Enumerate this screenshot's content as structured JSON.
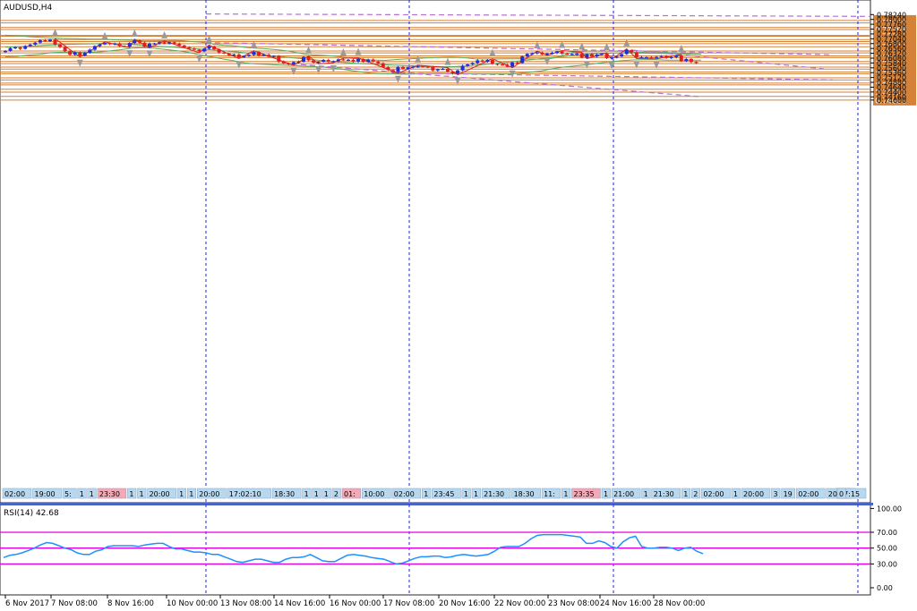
{
  "chart_data": [
    {
      "type": "candlestick",
      "title": "AUDUSD,H4",
      "price_scale_labels": [
        "0.78240",
        "0.78000",
        "0.77760",
        "0.77520",
        "0.77280",
        "0.77040",
        "0.76800",
        "0.76560",
        "0.76320",
        "0.76080",
        "0.75840",
        "0.75600",
        "0.75360",
        "0.75120",
        "0.74880",
        "0.74640",
        "0.74400",
        "0.74160",
        "0.74000"
      ],
      "horizontal_levels": [
        "0.77947",
        "0.77828",
        "0.77598",
        "0.77498",
        "0.77205",
        "0.77169",
        "0.77000",
        "0.76900",
        "0.76793",
        "0.76644",
        "0.76436",
        "0.76341",
        "0.76189",
        "0.76106",
        "0.75913",
        "0.75806",
        "0.75635",
        "0.75537",
        "0.75398",
        "0.75308",
        "0.75105",
        "0.75000",
        "0.74843",
        "0.74753",
        "0.74536",
        "0.74391",
        "0.74183",
        "0.74000"
      ],
      "x_tick_labels": [
        "6 Nov 2017",
        "7 Nov 08:00",
        "8 Nov 16:00",
        "10 Nov 00:00",
        "13 Nov 08:00",
        "14 Nov 16:00",
        "16 Nov 00:00",
        "17 Nov 08:00",
        "20 Nov 16:00",
        "22 Nov 00:00",
        "23 Nov 08:00",
        "24 Nov 16:00",
        "28 Nov 00:00"
      ],
      "session_labels": [
        {
          "text": "02:00",
          "color": "#b8d8f0"
        },
        {
          "text": "19:00",
          "color": "#b8d8f0"
        },
        {
          "text": "5:",
          "color": "#b8d8f0"
        },
        {
          "text": "1",
          "color": "#b8d8f0"
        },
        {
          "text": "1",
          "color": "#b8d8f0"
        },
        {
          "text": "23:30",
          "color": "#f4a9b6"
        },
        {
          "text": "1",
          "color": "#b8d8f0"
        },
        {
          "text": "1",
          "color": "#b8d8f0"
        },
        {
          "text": "20:00",
          "color": "#b8d8f0"
        },
        {
          "text": "1",
          "color": "#b8d8f0"
        },
        {
          "text": "1",
          "color": "#b8d8f0"
        },
        {
          "text": "20:00",
          "color": "#b8d8f0"
        },
        {
          "text": "17:02:10",
          "color": "#b8d8f0"
        },
        {
          "text": "18:30",
          "color": "#b8d8f0"
        },
        {
          "text": "1",
          "color": "#b8d8f0"
        },
        {
          "text": "1",
          "color": "#b8d8f0"
        },
        {
          "text": "1",
          "color": "#b8d8f0"
        },
        {
          "text": "2",
          "color": "#b8d8f0"
        },
        {
          "text": "01:",
          "color": "#f4a9b6"
        },
        {
          "text": "10:00",
          "color": "#b8d8f0"
        },
        {
          "text": "02:00",
          "color": "#b8d8f0"
        },
        {
          "text": "1",
          "color": "#b8d8f0"
        },
        {
          "text": "23:45",
          "color": "#b8d8f0"
        },
        {
          "text": "1",
          "color": "#b8d8f0"
        },
        {
          "text": "1",
          "color": "#b8d8f0"
        },
        {
          "text": "21:30",
          "color": "#b8d8f0"
        },
        {
          "text": "18:30",
          "color": "#b8d8f0"
        },
        {
          "text": "11:",
          "color": "#b8d8f0"
        },
        {
          "text": "1",
          "color": "#b8d8f0"
        },
        {
          "text": "23:35",
          "color": "#f4a9b6"
        },
        {
          "text": "1",
          "color": "#b8d8f0"
        },
        {
          "text": "21:00",
          "color": "#b8d8f0"
        },
        {
          "text": "1",
          "color": "#b8d8f0"
        },
        {
          "text": "21:30",
          "color": "#b8d8f0"
        },
        {
          "text": "1",
          "color": "#b8d8f0"
        },
        {
          "text": "2",
          "color": "#b8d8f0"
        },
        {
          "text": "02:00",
          "color": "#b8d8f0"
        },
        {
          "text": "1",
          "color": "#b8d8f0"
        },
        {
          "text": "20:00",
          "color": "#b8d8f0"
        },
        {
          "text": "3",
          "color": "#b8d8f0"
        },
        {
          "text": "19",
          "color": "#b8d8f0"
        },
        {
          "text": "02:00",
          "color": "#b8d8f0"
        },
        {
          "text": "20:00",
          "color": "#b8d8f0"
        },
        {
          "text": "7:",
          "color": "#b8d8f0"
        },
        {
          "text": "17:15",
          "color": "#b8d8f0"
        },
        {
          "text": "0",
          "color": "#b8d8f0"
        }
      ],
      "series": [
        {
          "name": "AUDUSD",
          "role": "candles",
          "close": [
            0.7644,
            0.7658,
            0.7662,
            0.7654,
            0.7668,
            0.7675,
            0.7685,
            0.7697,
            0.7692,
            0.77,
            0.7675,
            0.7663,
            0.7642,
            0.7625,
            0.7637,
            0.762,
            0.7635,
            0.765,
            0.7668,
            0.7676,
            0.7683,
            0.7677,
            0.7681,
            0.7668,
            0.7665,
            0.7683,
            0.7696,
            0.7685,
            0.7664,
            0.768,
            0.7681,
            0.7687,
            0.768,
            0.7687,
            0.768,
            0.7671,
            0.7662,
            0.7655,
            0.765,
            0.7641,
            0.7655,
            0.7667,
            0.7652,
            0.7636,
            0.7631,
            0.7622,
            0.7626,
            0.7612,
            0.7618,
            0.7624,
            0.7639,
            0.7621,
            0.7625,
            0.7615,
            0.7619,
            0.7591,
            0.7582,
            0.7578,
            0.7588,
            0.759,
            0.7614,
            0.7597,
            0.7586,
            0.759,
            0.7599,
            0.7591,
            0.7593,
            0.7602,
            0.7598,
            0.76,
            0.7591,
            0.7604,
            0.7589,
            0.7601,
            0.7592,
            0.7583,
            0.7563,
            0.7549,
            0.754,
            0.7564,
            0.7555,
            0.7562,
            0.7566,
            0.7567,
            0.7566,
            0.7563,
            0.7547,
            0.7553,
            0.7555,
            0.7541,
            0.7532,
            0.7547,
            0.757,
            0.7577,
            0.7584,
            0.7597,
            0.759,
            0.7599,
            0.758,
            0.7577,
            0.7575,
            0.7566,
            0.7587,
            0.7584,
            0.7616,
            0.7629,
            0.7632,
            0.7637,
            0.7626,
            0.7631,
            0.7634,
            0.7641,
            0.763,
            0.7628,
            0.7629,
            0.7631,
            0.761,
            0.7628,
            0.7616,
            0.7625,
            0.763,
            0.7608,
            0.7613,
            0.7616,
            0.7628,
            0.7648,
            0.7637,
            0.7612,
            0.7613,
            0.7613,
            0.7611,
            0.7614,
            0.7619,
            0.7609,
            0.7613,
            0.7621,
            0.7593,
            0.7604,
            0.7589,
            0.7585
          ]
        },
        {
          "name": "Bollinger upper",
          "role": "envelope",
          "values": [
            0.7722,
            0.772,
            0.7718,
            0.7714,
            0.7712,
            0.771,
            0.7708,
            0.7706,
            0.7705,
            0.7704,
            0.7703,
            0.7702,
            0.7702,
            0.77,
            0.7698,
            0.7697,
            0.7696,
            0.7694,
            0.7693,
            0.7694,
            0.7695,
            0.7696,
            0.7694,
            0.769,
            0.7688,
            0.7683,
            0.7675,
            0.7672,
            0.767,
            0.7665,
            0.766,
            0.7657,
            0.7655,
            0.7652,
            0.7648,
            0.7643,
            0.7636,
            0.7628,
            0.7624,
            0.7622,
            0.762,
            0.7617,
            0.7612,
            0.7607,
            0.7603,
            0.7599,
            0.7598,
            0.7597,
            0.76,
            0.7603,
            0.7605,
            0.7607,
            0.7609,
            0.761,
            0.7612,
            0.7613,
            0.7612,
            0.7609,
            0.7605,
            0.7604,
            0.7604,
            0.7604,
            0.7605,
            0.7605,
            0.7605,
            0.7604,
            0.7603,
            0.7604,
            0.761,
            0.7625,
            0.7636,
            0.7641,
            0.7642,
            0.7642,
            0.7642,
            0.7642,
            0.7642,
            0.7638,
            0.7636,
            0.7638,
            0.764,
            0.7638,
            0.7636,
            0.7634,
            0.7631,
            0.7629,
            0.7628
          ]
        },
        {
          "name": "Bollinger middle",
          "role": "envelope",
          "values": [
            0.7662,
            0.7664,
            0.7667,
            0.7669,
            0.7672,
            0.7674,
            0.7676,
            0.7677,
            0.7678,
            0.7679,
            0.768,
            0.7679,
            0.7677,
            0.7675,
            0.7672,
            0.7668,
            0.7665,
            0.7662,
            0.7658,
            0.7655,
            0.7652,
            0.7649,
            0.7644,
            0.764,
            0.7635,
            0.7629,
            0.7623,
            0.7618,
            0.7614,
            0.7609,
            0.7605,
            0.76,
            0.7595,
            0.759,
            0.7587,
            0.7583,
            0.758,
            0.7578,
            0.7576,
            0.7573,
            0.7571,
            0.757,
            0.7568,
            0.7567,
            0.7566,
            0.7566,
            0.7568,
            0.7572,
            0.7576,
            0.758,
            0.7585,
            0.759,
            0.7596,
            0.7601,
            0.7606,
            0.7611,
            0.7616,
            0.7621,
            0.7626,
            0.7629,
            0.7632,
            0.7633,
            0.7634,
            0.7634,
            0.7633,
            0.7632,
            0.7631,
            0.763,
            0.7629,
            0.7628,
            0.7628
          ]
        },
        {
          "name": "Bollinger lower",
          "role": "envelope",
          "values": [
            0.7615,
            0.7617,
            0.7623,
            0.7627,
            0.7635,
            0.7637,
            0.7637,
            0.7636,
            0.7637,
            0.7643,
            0.7649,
            0.7657,
            0.766,
            0.7657,
            0.7651,
            0.7645,
            0.7637,
            0.7625,
            0.7615,
            0.7605,
            0.7595,
            0.7584,
            0.7579,
            0.7577,
            0.7574,
            0.7572,
            0.7569,
            0.7567,
            0.7563,
            0.7557,
            0.7549,
            0.7541,
            0.7534,
            0.753,
            0.753,
            0.7528,
            0.753,
            0.7532,
            0.7533,
            0.7532,
            0.7531,
            0.753,
            0.753,
            0.7529,
            0.7529,
            0.7533,
            0.7538,
            0.7545,
            0.7556,
            0.7564,
            0.757,
            0.7575,
            0.7583,
            0.759,
            0.7595,
            0.7599,
            0.76,
            0.76,
            0.7598,
            0.7598,
            0.7598,
            0.7598
          ]
        }
      ],
      "trendlines": [
        {
          "from": [
            "10 Nov 00:00",
            0.7827
          ],
          "to": [
            "28 Nov 00:00",
            0.7815
          ]
        },
        {
          "from": [
            "10 Nov 00:00",
            0.7685
          ],
          "to": [
            "28 Nov 00:00",
            0.7625
          ]
        },
        {
          "from": [
            "14 Nov 16:00",
            0.758
          ],
          "to": [
            "28 Nov 00:00",
            0.7418
          ]
        },
        {
          "from": [
            "17 Nov 08:00",
            0.7535
          ],
          "to": [
            "28 Nov 00:00",
            0.75
          ]
        },
        {
          "from": [
            "24 Nov 16:00",
            0.7648
          ],
          "to": [
            "28 Nov 00:00",
            0.7555
          ]
        }
      ],
      "colors": {
        "up": "#1f2fd6",
        "down": "#e0201f",
        "level": "#d4823a",
        "band": "#5aab66",
        "trend": "#b86fd6",
        "grid_v": "#2323d6"
      }
    },
    {
      "type": "line",
      "title": "RSI(14) 42.68",
      "yticks": [
        "100.00",
        "70.00",
        "50.00",
        "30.00",
        "0.00"
      ],
      "ylim": [
        0,
        100
      ],
      "levels": [
        70,
        50,
        30
      ],
      "series": [
        {
          "name": "RSI(14)",
          "values": [
            38,
            41,
            42,
            44,
            47,
            50,
            54,
            57,
            56,
            53,
            50,
            48,
            44,
            42,
            42,
            46,
            48,
            52,
            53,
            53,
            53,
            53,
            52,
            54,
            55,
            56,
            56,
            52,
            49,
            49,
            47,
            45,
            45,
            44,
            42,
            42,
            39,
            36,
            33,
            32,
            34,
            36,
            36,
            34,
            32,
            32,
            36,
            38,
            38,
            39,
            42,
            38,
            34,
            33,
            33,
            37,
            41,
            42,
            41,
            40,
            38,
            37,
            36,
            33,
            30,
            31,
            34,
            37,
            39,
            39,
            40,
            40,
            38,
            39,
            41,
            42,
            41,
            40,
            41,
            42,
            46,
            51,
            52,
            52,
            52,
            56,
            62,
            66,
            67,
            67,
            67,
            67,
            66,
            65,
            64,
            56,
            56,
            59,
            57,
            52,
            50,
            58,
            63,
            65,
            52,
            50,
            50,
            51,
            51,
            50,
            47,
            50,
            51,
            46,
            43
          ]
        }
      ]
    }
  ]
}
